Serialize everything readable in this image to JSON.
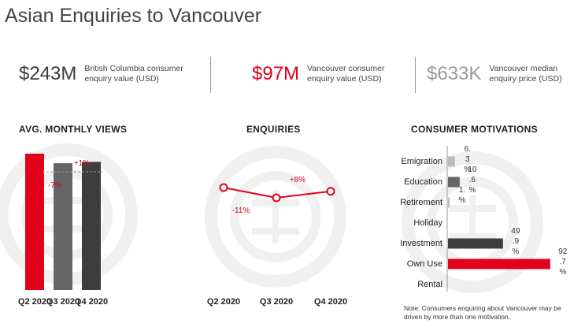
{
  "title": "Asian Enquiries to Vancouver",
  "stats": [
    {
      "value": "$243M",
      "description": "British Columbia consumer enquiry value (USD)",
      "color": "#3a3a3a"
    },
    {
      "value": "$97M",
      "description": "Vancouver consumer enquiry value (USD)",
      "color": "#e2001a"
    },
    {
      "value": "$633K",
      "description": "Vancouver median enquiry price (USD)",
      "color": "#9a9a9a"
    }
  ],
  "note": "Note: Consumers enquiring about Vancouver may be driven by more than one motivation.",
  "colors": {
    "red": "#e2001a",
    "dark": "#3d3d3d",
    "mid": "#666666",
    "light": "#bbbbbb",
    "watermark": "#f0f0f0"
  },
  "chart_data": [
    {
      "type": "bar",
      "title": "AVG. MONTHLY VIEWS",
      "categories": [
        "Q2 2020",
        "Q3 2020",
        "Q4 2020"
      ],
      "values": [
        100,
        93,
        94
      ],
      "colors": [
        "#e2001a",
        "#666666",
        "#3d3d3d"
      ],
      "annotations": [
        {
          "text": "-7%",
          "between": [
            "Q2 2020",
            "Q3 2020"
          ],
          "color": "#e2001a"
        },
        {
          "text": "+1%",
          "between": [
            "Q3 2020",
            "Q4 2020"
          ],
          "color": "#e2001a"
        }
      ],
      "ylim": [
        0,
        100
      ]
    },
    {
      "type": "line",
      "title": "ENQUIRIES",
      "categories": [
        "Q2 2020",
        "Q3 2020",
        "Q4 2020"
      ],
      "values": [
        100,
        89,
        96
      ],
      "color": "#e2001a",
      "annotations": [
        {
          "text": "-11%",
          "between": [
            "Q2 2020",
            "Q3 2020"
          ]
        },
        {
          "text": "+8%",
          "between": [
            "Q3 2020",
            "Q4 2020"
          ]
        }
      ],
      "ylim": [
        0,
        100
      ]
    },
    {
      "type": "bar",
      "orientation": "horizontal",
      "title": "CONSUMER MOTIVATIONS",
      "categories": [
        "Emigration",
        "Education",
        "Retirement",
        "Holiday",
        "Investment",
        "Own Use",
        "Rental"
      ],
      "values": [
        6.3,
        10.6,
        1,
        0,
        49.9,
        92.7,
        0
      ],
      "value_labels": [
        [
          "6.",
          "3",
          "%"
        ],
        [
          "10",
          ".6",
          "%"
        ],
        [
          "1.",
          "%"
        ],
        [],
        [
          "49",
          ".9",
          "%"
        ],
        [
          "92",
          ".7",
          "%"
        ],
        []
      ],
      "colors": [
        "#bbbbbb",
        "#666666",
        "#bbbbbb",
        "#bbbbbb",
        "#3d3d3d",
        "#e2001a",
        "#bbbbbb"
      ],
      "xlim": [
        0,
        100
      ]
    }
  ]
}
